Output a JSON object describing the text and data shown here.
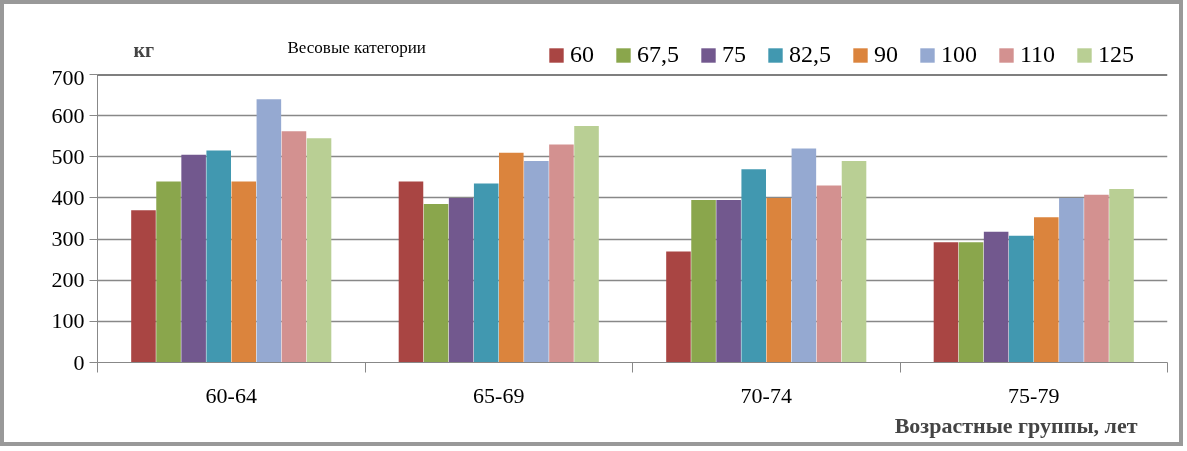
{
  "chart_data": {
    "type": "bar",
    "ylabel": "кг",
    "xlabel": "Возрастные группы, лет",
    "legend_title": "Весовые категории",
    "categories": [
      "60-64",
      "65-69",
      "70-74",
      "75-79"
    ],
    "series": [
      {
        "name": "60",
        "color": "#a94543",
        "values": [
          370,
          440,
          270,
          292
        ]
      },
      {
        "name": "67,5",
        "color": "#8aa64c",
        "values": [
          440,
          385,
          395,
          292
        ]
      },
      {
        "name": "75",
        "color": "#72588e",
        "values": [
          505,
          400,
          395,
          318
        ]
      },
      {
        "name": "82,5",
        "color": "#4198b0",
        "values": [
          515,
          435,
          470,
          308
        ]
      },
      {
        "name": "90",
        "color": "#db843d",
        "values": [
          440,
          510,
          400,
          353
        ]
      },
      {
        "name": "100",
        "color": "#95a9d1",
        "values": [
          640,
          490,
          520,
          400
        ]
      },
      {
        "name": "110",
        "color": "#d39190",
        "values": [
          562,
          530,
          430,
          408
        ]
      },
      {
        "name": "125",
        "color": "#b9cf94",
        "values": [
          545,
          575,
          490,
          422
        ]
      }
    ],
    "ylim": [
      0,
      700
    ],
    "yticks": [
      0,
      100,
      200,
      300,
      400,
      500,
      600,
      700
    ],
    "grid": "y",
    "legend": "top"
  }
}
